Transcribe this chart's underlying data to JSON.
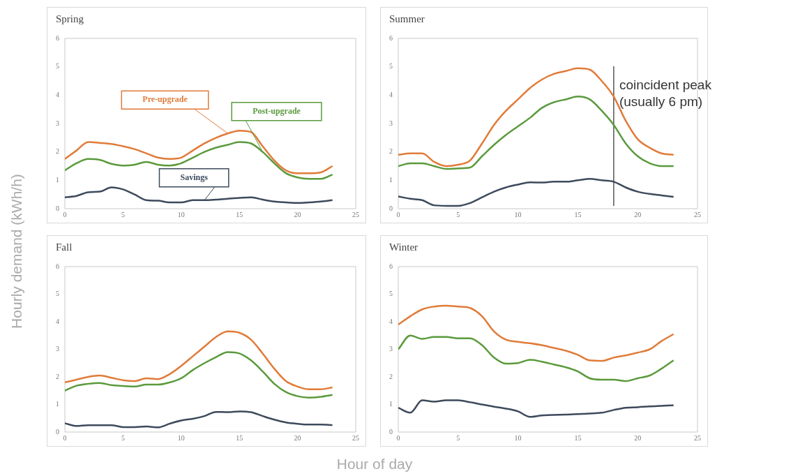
{
  "chart_data": [
    {
      "type": "line",
      "title": "Spring",
      "ylabel": "Hourly demand (kWh/h)",
      "marker": "none",
      "x": [
        0,
        1,
        2,
        3,
        4,
        5,
        6,
        7,
        8,
        9,
        10,
        11,
        12,
        13,
        14,
        15,
        16,
        17,
        18,
        19,
        20,
        21,
        22,
        23
      ],
      "xlim": [
        0,
        25
      ],
      "xticks": [
        0,
        5,
        10,
        15,
        20,
        25
      ],
      "ylim": [
        0,
        6
      ],
      "yticks": [
        0,
        1,
        2,
        3,
        4,
        5,
        6
      ],
      "series": [
        {
          "name": "Pre-upgrade",
          "color": "#e07b39",
          "values": [
            1.75,
            2.05,
            2.35,
            2.32,
            2.28,
            2.2,
            2.1,
            1.95,
            1.8,
            1.75,
            1.8,
            2.05,
            2.3,
            2.5,
            2.65,
            2.75,
            2.7,
            2.2,
            1.7,
            1.35,
            1.25,
            1.25,
            1.28,
            1.5
          ]
        },
        {
          "name": "Post-upgrade",
          "color": "#5a9a3c",
          "values": [
            1.35,
            1.6,
            1.75,
            1.72,
            1.58,
            1.52,
            1.55,
            1.65,
            1.55,
            1.52,
            1.6,
            1.8,
            2.0,
            2.15,
            2.25,
            2.35,
            2.3,
            2.0,
            1.6,
            1.25,
            1.1,
            1.05,
            1.05,
            1.2
          ]
        },
        {
          "name": "Savings",
          "color": "#3d4a5c",
          "values": [
            0.4,
            0.45,
            0.58,
            0.6,
            0.75,
            0.68,
            0.5,
            0.3,
            0.28,
            0.22,
            0.22,
            0.3,
            0.3,
            0.32,
            0.35,
            0.38,
            0.4,
            0.32,
            0.25,
            0.22,
            0.2,
            0.22,
            0.25,
            0.3
          ]
        }
      ]
    },
    {
      "type": "line",
      "title": "Summer",
      "marker": "none",
      "x": [
        0,
        1,
        2,
        3,
        4,
        5,
        6,
        7,
        8,
        9,
        10,
        11,
        12,
        13,
        14,
        15,
        16,
        17,
        18,
        19,
        20,
        21,
        22,
        23
      ],
      "xlim": [
        0,
        25
      ],
      "xticks": [
        0,
        5,
        10,
        15,
        20,
        25
      ],
      "ylim": [
        0,
        6
      ],
      "yticks": [
        0,
        1,
        2,
        3,
        4,
        5,
        6
      ],
      "ref_lines": [
        {
          "axis": "x",
          "value": 18,
          "label": "coincident peak (usually 6 pm)",
          "color": "#555555"
        }
      ],
      "series": [
        {
          "color": "#e07b39",
          "values": [
            1.9,
            1.95,
            1.95,
            1.65,
            1.5,
            1.55,
            1.7,
            2.3,
            2.95,
            3.45,
            3.85,
            4.25,
            4.55,
            4.75,
            4.85,
            4.95,
            4.9,
            4.5,
            3.95,
            3.1,
            2.45,
            2.15,
            1.95,
            1.9
          ]
        },
        {
          "color": "#5a9a3c",
          "values": [
            1.5,
            1.6,
            1.6,
            1.5,
            1.4,
            1.42,
            1.45,
            1.85,
            2.25,
            2.6,
            2.9,
            3.2,
            3.55,
            3.75,
            3.85,
            3.95,
            3.85,
            3.45,
            2.95,
            2.3,
            1.85,
            1.6,
            1.5,
            1.5
          ]
        },
        {
          "color": "#3d4a5c",
          "values": [
            0.43,
            0.35,
            0.3,
            0.12,
            0.1,
            0.1,
            0.2,
            0.4,
            0.6,
            0.75,
            0.85,
            0.93,
            0.92,
            0.95,
            0.95,
            1.0,
            1.05,
            1.0,
            0.95,
            0.75,
            0.6,
            0.52,
            0.47,
            0.42
          ]
        }
      ]
    },
    {
      "type": "line",
      "title": "Fall",
      "xlabel": "Hour of day",
      "marker": "none",
      "x": [
        0,
        1,
        2,
        3,
        4,
        5,
        6,
        7,
        8,
        9,
        10,
        11,
        12,
        13,
        14,
        15,
        16,
        17,
        18,
        19,
        20,
        21,
        22,
        23
      ],
      "xlim": [
        0,
        25
      ],
      "xticks": [
        0,
        5,
        10,
        15,
        20,
        25
      ],
      "ylim": [
        0,
        6
      ],
      "yticks": [
        0,
        1,
        2,
        3,
        4,
        5,
        6
      ],
      "series": [
        {
          "color": "#e07b39",
          "values": [
            1.8,
            1.9,
            2.0,
            2.05,
            1.97,
            1.88,
            1.85,
            1.95,
            1.92,
            2.1,
            2.4,
            2.75,
            3.1,
            3.45,
            3.65,
            3.6,
            3.35,
            2.85,
            2.3,
            1.85,
            1.65,
            1.55,
            1.55,
            1.62
          ]
        },
        {
          "color": "#5a9a3c",
          "values": [
            1.5,
            1.68,
            1.75,
            1.78,
            1.7,
            1.67,
            1.65,
            1.72,
            1.72,
            1.8,
            1.95,
            2.25,
            2.5,
            2.72,
            2.9,
            2.85,
            2.6,
            2.2,
            1.75,
            1.45,
            1.3,
            1.25,
            1.28,
            1.35
          ]
        },
        {
          "color": "#3d4a5c",
          "values": [
            0.32,
            0.22,
            0.25,
            0.25,
            0.25,
            0.18,
            0.18,
            0.2,
            0.17,
            0.3,
            0.42,
            0.48,
            0.58,
            0.73,
            0.72,
            0.75,
            0.72,
            0.58,
            0.45,
            0.35,
            0.3,
            0.27,
            0.27,
            0.25
          ]
        }
      ]
    },
    {
      "type": "line",
      "title": "Winter",
      "marker": "none",
      "x": [
        0,
        1,
        2,
        3,
        4,
        5,
        6,
        7,
        8,
        9,
        10,
        11,
        12,
        13,
        14,
        15,
        16,
        17,
        18,
        19,
        20,
        21,
        22,
        23
      ],
      "xlim": [
        0,
        25
      ],
      "xticks": [
        0,
        5,
        10,
        15,
        20,
        25
      ],
      "ylim": [
        0,
        6
      ],
      "yticks": [
        0,
        1,
        2,
        3,
        4,
        5,
        6
      ],
      "series": [
        {
          "color": "#e07b39",
          "values": [
            3.9,
            4.2,
            4.45,
            4.55,
            4.58,
            4.55,
            4.5,
            4.2,
            3.65,
            3.35,
            3.27,
            3.22,
            3.15,
            3.05,
            2.95,
            2.8,
            2.6,
            2.58,
            2.7,
            2.78,
            2.88,
            3.0,
            3.3,
            3.55
          ]
        },
        {
          "color": "#5a9a3c",
          "values": [
            3.0,
            3.5,
            3.38,
            3.45,
            3.45,
            3.4,
            3.4,
            3.15,
            2.7,
            2.48,
            2.5,
            2.62,
            2.55,
            2.45,
            2.35,
            2.2,
            1.95,
            1.9,
            1.9,
            1.85,
            1.95,
            2.05,
            2.3,
            2.6
          ]
        },
        {
          "color": "#3d4a5c",
          "values": [
            0.88,
            0.7,
            1.15,
            1.1,
            1.15,
            1.15,
            1.08,
            1.0,
            0.92,
            0.85,
            0.75,
            0.55,
            0.6,
            0.62,
            0.63,
            0.65,
            0.67,
            0.7,
            0.8,
            0.88,
            0.9,
            0.93,
            0.95,
            0.97
          ]
        }
      ]
    }
  ]
}
